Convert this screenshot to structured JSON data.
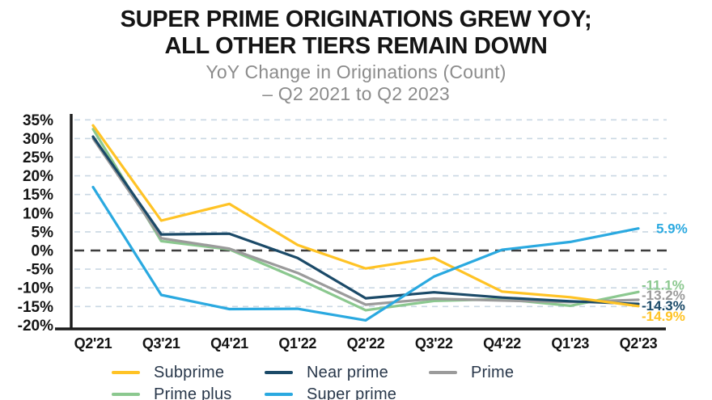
{
  "header": {
    "title_line1": "SUPER PRIME ORIGINATIONS GREW YOY;",
    "title_line2": "ALL OTHER TIERS REMAIN DOWN",
    "subtitle_line1": "YoY Change in Originations (Count)",
    "subtitle_line2": "– Q2 2021 to Q2 2023"
  },
  "chart_data": {
    "type": "line",
    "title": "SUPER PRIME ORIGINATIONS GREW YOY; ALL OTHER TIERS REMAIN DOWN",
    "subtitle": "YoY Change in Originations (Count) – Q2 2021 to Q2 2023",
    "x": [
      "Q2'21",
      "Q3'21",
      "Q4'21",
      "Q1'22",
      "Q2'22",
      "Q3'22",
      "Q4'22",
      "Q1'23",
      "Q2'23"
    ],
    "series": [
      {
        "name": "Subprime",
        "color": "#FFC325",
        "values": [
          33.5,
          8.0,
          12.5,
          1.5,
          -4.8,
          -2.0,
          -11.0,
          -12.5,
          -14.9
        ],
        "end_label": "-14.9%",
        "label_dy": 12,
        "label_dx": 0
      },
      {
        "name": "Prime plus",
        "color": "#8BC88F",
        "values": [
          32.5,
          2.5,
          0.3,
          -7.5,
          -16.0,
          -13.5,
          -13.0,
          -14.8,
          -11.1
        ],
        "end_label": "-11.1%",
        "label_dy": -9,
        "label_dx": 0
      },
      {
        "name": "Prime",
        "color": "#9B9B9B",
        "values": [
          30.0,
          3.3,
          0.5,
          -6.0,
          -14.5,
          -12.9,
          -13.4,
          -13.8,
          -13.2
        ],
        "end_label": "-13.2%",
        "label_dy": -6,
        "label_dx": 0
      },
      {
        "name": "Near prime",
        "color": "#1B4A68",
        "values": [
          30.5,
          4.3,
          4.5,
          -2.0,
          -12.8,
          -11.2,
          -12.6,
          -13.6,
          -14.3
        ],
        "end_label": "-14.3%",
        "label_dy": 2,
        "label_dx": 0
      },
      {
        "name": "Super prime",
        "color": "#2AA9E0",
        "values": [
          17.0,
          -11.9,
          -15.7,
          -15.6,
          -18.7,
          -7.0,
          0.2,
          2.3,
          5.9
        ],
        "end_label": "5.9%",
        "label_dy": 0,
        "label_dx": 18
      }
    ],
    "draw_order": [
      1,
      2,
      3,
      0,
      4
    ],
    "ylim": [
      -20,
      35
    ],
    "ytick_step": 5,
    "ytick_suffix": "%",
    "grid": true,
    "zero_line": true,
    "legend_position": "bottom",
    "colors": {
      "grid": "#C9D7E3",
      "zero_line": "#3D3D3D",
      "axis": "#1A1A1A"
    }
  },
  "legend": {
    "rows": [
      [
        "Subprime",
        "Near prime",
        "Prime"
      ],
      [
        "Prime plus",
        "Super prime"
      ]
    ]
  }
}
